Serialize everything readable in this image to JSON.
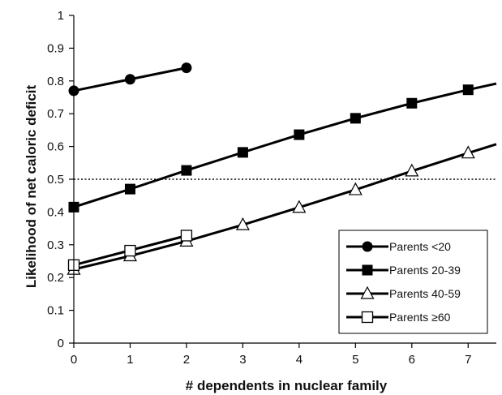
{
  "chart_data": {
    "type": "line",
    "title": "",
    "xlabel": "# dependents in nuclear family",
    "ylabel": "Likelihood of net caloric deficit",
    "xlim": [
      0,
      7.5
    ],
    "ylim": [
      0,
      1
    ],
    "x_ticks": [
      "0",
      "1",
      "2",
      "3",
      "4",
      "5",
      "6",
      "7"
    ],
    "y_ticks": [
      "0",
      "0.1",
      "0.2",
      "0.3",
      "0.4",
      "0.5",
      "0.6",
      "0.7",
      "0.8",
      "0.9",
      "1"
    ],
    "reference_line": {
      "y": 0.5,
      "style": "dotted"
    },
    "grid": false,
    "legend_position": "bottom-right",
    "series": [
      {
        "name": "Parents <20",
        "marker": "filled-circle",
        "x": [
          0,
          1,
          2
        ],
        "y": [
          0.77,
          0.805,
          0.84
        ],
        "line_x": [
          0,
          2
        ],
        "line_y": [
          0.77,
          0.84
        ]
      },
      {
        "name": "Parents 20-39",
        "marker": "filled-square",
        "x": [
          0,
          1,
          2,
          3,
          4,
          5,
          6,
          7
        ],
        "y": [
          0.415,
          0.47,
          0.527,
          0.582,
          0.636,
          0.686,
          0.732,
          0.773
        ],
        "line_x": [
          0,
          1,
          2,
          3,
          4,
          5,
          6,
          7,
          7.5
        ],
        "line_y": [
          0.415,
          0.47,
          0.527,
          0.582,
          0.636,
          0.686,
          0.732,
          0.773,
          0.792
        ]
      },
      {
        "name": "Parents 40-59",
        "marker": "open-triangle",
        "x": [
          0,
          1,
          2,
          3,
          4,
          5,
          6,
          7
        ],
        "y": [
          0.225,
          0.266,
          0.311,
          0.361,
          0.414,
          0.468,
          0.525,
          0.58
        ],
        "line_x": [
          0,
          1,
          2,
          3,
          4,
          5,
          6,
          7,
          7.5
        ],
        "line_y": [
          0.225,
          0.266,
          0.311,
          0.361,
          0.414,
          0.468,
          0.525,
          0.58,
          0.607
        ]
      },
      {
        "name": "Parents ≥60",
        "marker": "open-square",
        "x": [
          0,
          1,
          2
        ],
        "y": [
          0.238,
          0.282,
          0.328
        ],
        "line_x": [
          0,
          2
        ],
        "line_y": [
          0.238,
          0.328
        ]
      }
    ]
  }
}
